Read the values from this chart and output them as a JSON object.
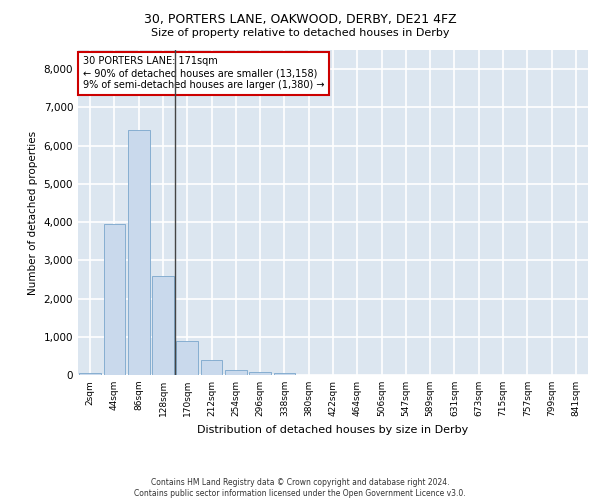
{
  "title1": "30, PORTERS LANE, OAKWOOD, DERBY, DE21 4FZ",
  "title2": "Size of property relative to detached houses in Derby",
  "xlabel": "Distribution of detached houses by size in Derby",
  "ylabel": "Number of detached properties",
  "categories": [
    "2sqm",
    "44sqm",
    "86sqm",
    "128sqm",
    "170sqm",
    "212sqm",
    "254sqm",
    "296sqm",
    "338sqm",
    "380sqm",
    "422sqm",
    "464sqm",
    "506sqm",
    "547sqm",
    "589sqm",
    "631sqm",
    "673sqm",
    "715sqm",
    "757sqm",
    "799sqm",
    "841sqm"
  ],
  "values": [
    60,
    3950,
    6400,
    2600,
    900,
    380,
    140,
    80,
    50,
    0,
    0,
    0,
    0,
    0,
    0,
    0,
    0,
    0,
    0,
    0,
    0
  ],
  "bar_color": "#c9d9ec",
  "bar_edge_color": "#7aa6cc",
  "bg_color": "#dce6f0",
  "grid_color": "#ffffff",
  "annotation_box_color": "#ffffff",
  "annotation_border_color": "#cc0000",
  "vline_x_index": 4,
  "vline_color": "#444444",
  "annotation_title": "30 PORTERS LANE: 171sqm",
  "annotation_line1": "← 90% of detached houses are smaller (13,158)",
  "annotation_line2": "9% of semi-detached houses are larger (1,380) →",
  "ylim": [
    0,
    8500
  ],
  "yticks": [
    0,
    1000,
    2000,
    3000,
    4000,
    5000,
    6000,
    7000,
    8000
  ],
  "footer1": "Contains HM Land Registry data © Crown copyright and database right 2024.",
  "footer2": "Contains public sector information licensed under the Open Government Licence v3.0."
}
